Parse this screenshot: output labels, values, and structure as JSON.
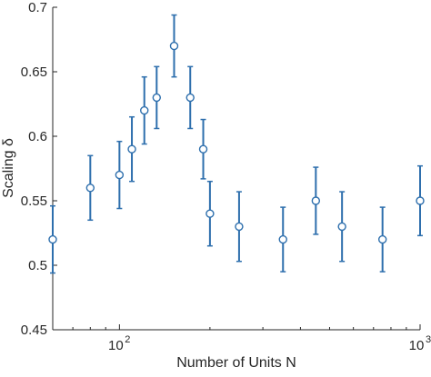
{
  "chart_data": {
    "type": "scatter",
    "xlabel": "Number of Units N",
    "ylabel": "Scaling δ",
    "xscale": "log",
    "xlim": [
      60,
      1000
    ],
    "ylim": [
      0.45,
      0.7
    ],
    "grid": false,
    "yticks": [
      {
        "value": 0.45,
        "label": "0.45"
      },
      {
        "value": 0.5,
        "label": "0.5"
      },
      {
        "value": 0.55,
        "label": "0.55"
      },
      {
        "value": 0.6,
        "label": "0.6"
      },
      {
        "value": 0.65,
        "label": "0.65"
      },
      {
        "value": 0.7,
        "label": "0.7"
      }
    ],
    "xticks": [
      {
        "value": 100,
        "base": "10",
        "exp": "2"
      },
      {
        "value": 1000,
        "base": "10",
        "exp": "3"
      }
    ],
    "x_minor_ticks": [
      60,
      70,
      80,
      90,
      200,
      300,
      400,
      500,
      600,
      700,
      800,
      900
    ],
    "series": [
      {
        "marker": "circle",
        "color": "#2e6fad",
        "points": [
          {
            "x": 60,
            "y": 0.52,
            "err": 0.026
          },
          {
            "x": 80,
            "y": 0.56,
            "err": 0.025
          },
          {
            "x": 100,
            "y": 0.57,
            "err": 0.026
          },
          {
            "x": 110,
            "y": 0.59,
            "err": 0.025
          },
          {
            "x": 121,
            "y": 0.62,
            "err": 0.026
          },
          {
            "x": 133,
            "y": 0.63,
            "err": 0.024
          },
          {
            "x": 152,
            "y": 0.67,
            "err": 0.024
          },
          {
            "x": 172,
            "y": 0.63,
            "err": 0.024
          },
          {
            "x": 190,
            "y": 0.59,
            "err": 0.023
          },
          {
            "x": 200,
            "y": 0.54,
            "err": 0.025
          },
          {
            "x": 250,
            "y": 0.53,
            "err": 0.027
          },
          {
            "x": 350,
            "y": 0.52,
            "err": 0.025
          },
          {
            "x": 450,
            "y": 0.55,
            "err": 0.026
          },
          {
            "x": 550,
            "y": 0.53,
            "err": 0.027
          },
          {
            "x": 750,
            "y": 0.52,
            "err": 0.025
          },
          {
            "x": 1000,
            "y": 0.55,
            "err": 0.027
          }
        ]
      }
    ]
  }
}
